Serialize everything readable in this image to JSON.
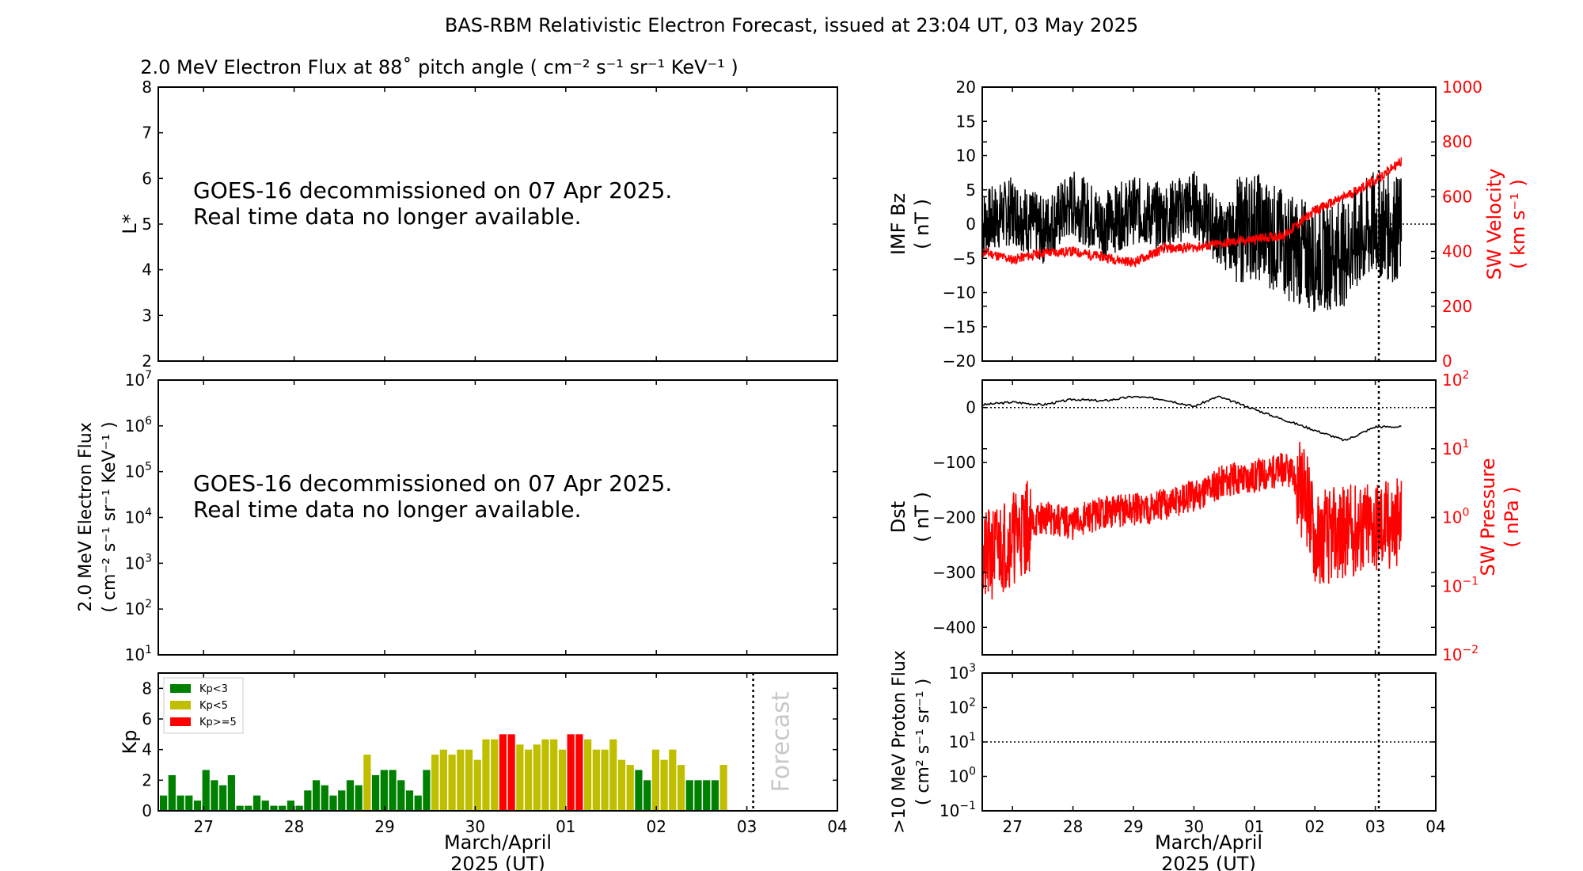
{
  "title": "BAS-RBM Relativistic Electron Forecast, issued at 23:04 UT, 03 May 2025",
  "colors": {
    "kp_low": "#008000",
    "kp_mid": "#bfbf00",
    "kp_high": "#ff0000",
    "sw": "#ff0000",
    "axis": "#000000",
    "forecast_text": "#c0c0c0"
  },
  "chart_data": [
    {
      "id": "lstar",
      "type": "heatmap",
      "title": "2.0 MeV Electron Flux at 88˚ pitch angle ( cm⁻² s⁻¹ sr⁻¹ KeV⁻¹ )",
      "ylabel": "L*",
      "ylim": [
        2,
        8
      ],
      "yticks": [
        "2",
        "3",
        "4",
        "5",
        "6",
        "7",
        "8"
      ],
      "message": [
        "GOES-16 decommissioned on 07 Apr 2025.",
        "Real time data no longer available."
      ]
    },
    {
      "id": "flux",
      "type": "line",
      "ylabel_line1": "2.0 MeV Electron Flux",
      "ylabel_line2": "( cm⁻² s⁻¹ sr⁻¹ KeV⁻¹ )",
      "yscale": "log",
      "ylim": [
        10,
        10000000
      ],
      "ytick_exponents": [
        "1",
        "2",
        "3",
        "4",
        "5",
        "6",
        "7"
      ],
      "message": [
        "GOES-16 decommissioned on 07 Apr 2025.",
        "Real time data no longer available."
      ]
    },
    {
      "id": "kp",
      "type": "bar",
      "ylabel": "Kp",
      "ylim": [
        0,
        9
      ],
      "yticks": [
        "0",
        "2",
        "4",
        "6",
        "8"
      ],
      "xticks": [
        "27",
        "28",
        "29",
        "30",
        "01",
        "02",
        "03",
        "04"
      ],
      "xlabel_line1": "March/April",
      "xlabel_line2": "2025 (UT)",
      "legend": [
        "Kp<3",
        "Kp<5",
        "Kp>=5"
      ],
      "legend_position": "upper-left",
      "forecast_label": "Forecast",
      "forecast_start_bar": 70,
      "values": [
        1,
        2.33,
        1,
        1,
        0.67,
        2.67,
        2,
        1.67,
        2.33,
        0.33,
        0.33,
        1,
        0.67,
        0.33,
        0.33,
        0.67,
        0.33,
        1.33,
        2,
        1.67,
        1,
        1.33,
        2,
        1.67,
        3.67,
        2.33,
        2.67,
        2.67,
        2,
        1.33,
        1,
        2.67,
        3.67,
        4,
        3.67,
        4,
        4,
        3.33,
        4.67,
        4.67,
        5,
        5,
        4.33,
        4,
        4.33,
        4.67,
        4.67,
        4,
        5,
        5,
        4.67,
        4,
        4,
        4.67,
        3.33,
        3,
        2.67,
        2,
        4,
        3.33,
        4,
        3,
        2,
        2,
        2,
        2,
        3
      ]
    },
    {
      "id": "imf",
      "type": "line",
      "ylabel_line1": "IMF Bz",
      "ylabel_line2": "( nT )",
      "ylim": [
        -20,
        20
      ],
      "yticks": [
        "−20",
        "−15",
        "−10",
        "−5",
        "0",
        "5",
        "10",
        "15",
        "20"
      ],
      "y2label_line1": "SW Velocity",
      "y2label_line2": "( km s⁻¹ )",
      "y2lim": [
        0,
        1000
      ],
      "y2ticks": [
        "0",
        "200",
        "400",
        "600",
        "800",
        "1000"
      ],
      "series": [
        {
          "name": "IMF Bz",
          "color": "#000000",
          "x_days": [
            0,
            0.5,
            1,
            1.5,
            2,
            2.5,
            3,
            3.5,
            4,
            4.5,
            5,
            5.5,
            6,
            6.5,
            7
          ],
          "values": [
            0,
            2,
            -1,
            3,
            0,
            2,
            1,
            3,
            -2,
            0,
            -3,
            -5,
            -4,
            0,
            -1
          ]
        },
        {
          "name": "SW Velocity",
          "color": "#ff0000",
          "x_days": [
            0,
            0.5,
            1,
            1.5,
            2,
            2.5,
            3,
            3.5,
            4,
            4.5,
            5,
            5.5,
            6,
            6.5,
            7
          ],
          "values": [
            400,
            370,
            395,
            400,
            380,
            360,
            410,
            415,
            430,
            445,
            460,
            550,
            600,
            660,
            740
          ]
        }
      ]
    },
    {
      "id": "dst",
      "type": "line",
      "ylabel_line1": "Dst",
      "ylabel_line2": "( nT )",
      "ylim": [
        -450,
        50
      ],
      "yticks": [
        "−400",
        "−300",
        "−200",
        "−100",
        "0"
      ],
      "y2label_line1": "SW Pressure",
      "y2label_line2": "( nPa )",
      "y2scale": "log",
      "y2lim": [
        0.01,
        100
      ],
      "y2tick_exponents": [
        "−2",
        "−1",
        "0",
        "1",
        "2"
      ],
      "series": [
        {
          "name": "Dst",
          "color": "#000000",
          "x_days": [
            0,
            0.5,
            1,
            1.5,
            2,
            2.5,
            3,
            3.5,
            3.9,
            4.3,
            4.8,
            5.2,
            5.6,
            6,
            6.5,
            7
          ],
          "values": [
            5,
            10,
            5,
            15,
            12,
            20,
            15,
            2,
            20,
            5,
            -15,
            -30,
            -45,
            -60,
            -35,
            -35
          ]
        },
        {
          "name": "SW Pressure",
          "color": "#ff0000",
          "x_days": [
            0,
            0.5,
            1,
            1.5,
            2,
            2.5,
            3,
            3.5,
            4,
            4.5,
            5,
            5.5,
            6,
            6.5,
            7
          ],
          "values": [
            0.2,
            0.5,
            1.0,
            0.8,
            1.2,
            1.3,
            1.5,
            2.0,
            3.5,
            4.0,
            5.0,
            0.5,
            0.6,
            0.8,
            0.8
          ]
        }
      ]
    },
    {
      "id": "proton",
      "type": "line",
      "ylabel_line1": ">10 MeV Proton Flux",
      "ylabel_line2": "( cm² s⁻¹ sr⁻¹ )",
      "yscale": "log",
      "ylim": [
        0.1,
        1000
      ],
      "ytick_exponents": [
        "−1",
        "0",
        "1",
        "2",
        "3"
      ],
      "threshold": 10,
      "xticks": [
        "27",
        "28",
        "29",
        "30",
        "01",
        "02",
        "03",
        "04"
      ],
      "xlabel_line1": "March/April",
      "xlabel_line2": "2025 (UT)"
    }
  ]
}
